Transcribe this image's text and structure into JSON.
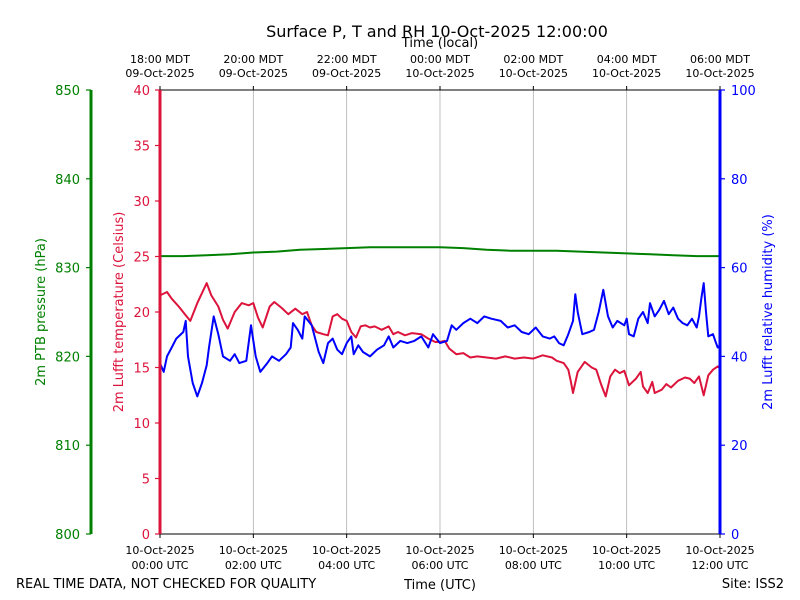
{
  "chart_data": {
    "type": "line",
    "title": "Surface P, T and RH 10-Oct-2025 12:00:00",
    "top_axis_label": "Time (local)",
    "xlabel": "Time (UTC)",
    "footer_left": "REAL TIME DATA, NOT CHECKED FOR QUALITY",
    "footer_right": "Site: ISS2",
    "x_unit": "hours since 10-Oct-2025 00:00 UTC",
    "xlim": [
      0,
      12
    ],
    "grid": "vertical",
    "x_ticks_utc": [
      {
        "x": 0,
        "line1": "10-Oct-2025",
        "line2": "00:00 UTC"
      },
      {
        "x": 2,
        "line1": "10-Oct-2025",
        "line2": "02:00 UTC"
      },
      {
        "x": 4,
        "line1": "10-Oct-2025",
        "line2": "04:00 UTC"
      },
      {
        "x": 6,
        "line1": "10-Oct-2025",
        "line2": "06:00 UTC"
      },
      {
        "x": 8,
        "line1": "10-Oct-2025",
        "line2": "08:00 UTC"
      },
      {
        "x": 10,
        "line1": "10-Oct-2025",
        "line2": "10:00 UTC"
      },
      {
        "x": 12,
        "line1": "10-Oct-2025",
        "line2": "12:00 UTC"
      }
    ],
    "x_ticks_local": [
      {
        "x": 0,
        "line1": "18:00 MDT",
        "line2": "09-Oct-2025"
      },
      {
        "x": 2,
        "line1": "20:00 MDT",
        "line2": "09-Oct-2025"
      },
      {
        "x": 4,
        "line1": "22:00 MDT",
        "line2": "09-Oct-2025"
      },
      {
        "x": 6,
        "line1": "00:00 MDT",
        "line2": "10-Oct-2025"
      },
      {
        "x": 8,
        "line1": "02:00 MDT",
        "line2": "10-Oct-2025"
      },
      {
        "x": 10,
        "line1": "04:00 MDT",
        "line2": "10-Oct-2025"
      },
      {
        "x": 12,
        "line1": "06:00 MDT",
        "line2": "10-Oct-2025"
      }
    ],
    "axes": {
      "pressure": {
        "label": "2m PTB pressure (hPa)",
        "ylim": [
          800,
          850
        ],
        "ticks": [
          800,
          810,
          820,
          830,
          840,
          850
        ],
        "color": "#008000"
      },
      "temperature": {
        "label": "2m Lufft temperature (Celsius)",
        "ylim": [
          0,
          40
        ],
        "ticks": [
          0,
          5,
          10,
          15,
          20,
          25,
          30,
          35,
          40
        ],
        "color": "#dc143c"
      },
      "humidity": {
        "label": "2m Lufft relative humidity (%)",
        "ylim": [
          0,
          100
        ],
        "ticks": [
          0,
          20,
          40,
          60,
          80,
          100
        ],
        "color": "#0000ff"
      }
    },
    "series": [
      {
        "axis": "pressure",
        "color": "#008000",
        "points": [
          [
            0,
            831.3
          ],
          [
            0.5,
            831.3
          ],
          [
            1,
            831.4
          ],
          [
            1.5,
            831.5
          ],
          [
            2,
            831.7
          ],
          [
            2.5,
            831.8
          ],
          [
            3,
            832.0
          ],
          [
            3.5,
            832.1
          ],
          [
            4,
            832.2
          ],
          [
            4.5,
            832.3
          ],
          [
            5,
            832.3
          ],
          [
            5.5,
            832.3
          ],
          [
            6,
            832.3
          ],
          [
            6.5,
            832.2
          ],
          [
            7,
            832.0
          ],
          [
            7.5,
            831.9
          ],
          [
            8,
            831.9
          ],
          [
            8.5,
            831.9
          ],
          [
            9,
            831.8
          ],
          [
            9.5,
            831.7
          ],
          [
            10,
            831.6
          ],
          [
            10.5,
            831.5
          ],
          [
            11,
            831.4
          ],
          [
            11.5,
            831.3
          ],
          [
            12,
            831.3
          ]
        ]
      },
      {
        "axis": "temperature",
        "color": "#dc143c",
        "points": [
          [
            0,
            21.5
          ],
          [
            0.15,
            21.8
          ],
          [
            0.25,
            21.2
          ],
          [
            0.4,
            20.5
          ],
          [
            0.55,
            19.7
          ],
          [
            0.65,
            19.2
          ],
          [
            0.8,
            20.8
          ],
          [
            0.9,
            21.7
          ],
          [
            1.0,
            22.6
          ],
          [
            1.1,
            21.5
          ],
          [
            1.25,
            20.5
          ],
          [
            1.35,
            19.3
          ],
          [
            1.45,
            18.5
          ],
          [
            1.6,
            20.0
          ],
          [
            1.75,
            20.8
          ],
          [
            1.9,
            20.6
          ],
          [
            2.0,
            20.8
          ],
          [
            2.1,
            19.5
          ],
          [
            2.2,
            18.6
          ],
          [
            2.35,
            20.5
          ],
          [
            2.45,
            20.9
          ],
          [
            2.6,
            20.4
          ],
          [
            2.75,
            19.8
          ],
          [
            2.9,
            20.3
          ],
          [
            3.05,
            19.8
          ],
          [
            3.15,
            20.0
          ],
          [
            3.25,
            18.8
          ],
          [
            3.35,
            18.2
          ],
          [
            3.5,
            18.0
          ],
          [
            3.6,
            17.9
          ],
          [
            3.7,
            19.6
          ],
          [
            3.8,
            19.8
          ],
          [
            3.9,
            19.4
          ],
          [
            4.0,
            19.2
          ],
          [
            4.1,
            18.2
          ],
          [
            4.2,
            17.7
          ],
          [
            4.3,
            18.7
          ],
          [
            4.4,
            18.8
          ],
          [
            4.5,
            18.6
          ],
          [
            4.6,
            18.7
          ],
          [
            4.75,
            18.4
          ],
          [
            4.9,
            18.7
          ],
          [
            5.0,
            18.0
          ],
          [
            5.1,
            18.2
          ],
          [
            5.25,
            17.9
          ],
          [
            5.4,
            18.1
          ],
          [
            5.6,
            18.0
          ],
          [
            5.75,
            17.6
          ],
          [
            5.9,
            17.3
          ],
          [
            6.0,
            17.3
          ],
          [
            6.1,
            17.4
          ],
          [
            6.2,
            16.7
          ],
          [
            6.35,
            16.2
          ],
          [
            6.5,
            16.3
          ],
          [
            6.65,
            15.9
          ],
          [
            6.8,
            16.0
          ],
          [
            7.0,
            15.9
          ],
          [
            7.2,
            15.8
          ],
          [
            7.4,
            16.0
          ],
          [
            7.6,
            15.8
          ],
          [
            7.8,
            15.9
          ],
          [
            8.0,
            15.8
          ],
          [
            8.2,
            16.1
          ],
          [
            8.4,
            15.9
          ],
          [
            8.5,
            15.6
          ],
          [
            8.65,
            15.4
          ],
          [
            8.75,
            14.8
          ],
          [
            8.8,
            13.8
          ],
          [
            8.85,
            12.7
          ],
          [
            8.95,
            14.6
          ],
          [
            9.1,
            15.5
          ],
          [
            9.25,
            15.0
          ],
          [
            9.35,
            14.8
          ],
          [
            9.45,
            13.5
          ],
          [
            9.55,
            12.4
          ],
          [
            9.65,
            14.2
          ],
          [
            9.75,
            14.8
          ],
          [
            9.85,
            14.5
          ],
          [
            9.95,
            14.7
          ],
          [
            10.05,
            13.4
          ],
          [
            10.2,
            14.0
          ],
          [
            10.3,
            14.6
          ],
          [
            10.35,
            13.3
          ],
          [
            10.45,
            12.7
          ],
          [
            10.55,
            13.7
          ],
          [
            10.6,
            12.7
          ],
          [
            10.75,
            13.0
          ],
          [
            10.85,
            13.5
          ],
          [
            10.95,
            13.2
          ],
          [
            11.1,
            13.8
          ],
          [
            11.25,
            14.1
          ],
          [
            11.35,
            14.0
          ],
          [
            11.45,
            13.6
          ],
          [
            11.55,
            14.2
          ],
          [
            11.65,
            12.5
          ],
          [
            11.75,
            14.3
          ],
          [
            11.85,
            14.8
          ],
          [
            11.95,
            15.1
          ],
          [
            12.0,
            15.0
          ]
        ]
      },
      {
        "axis": "humidity",
        "color": "#0000ff",
        "points": [
          [
            0,
            38.5
          ],
          [
            0.08,
            36.5
          ],
          [
            0.15,
            40.0
          ],
          [
            0.25,
            42.0
          ],
          [
            0.35,
            44.0
          ],
          [
            0.5,
            45.5
          ],
          [
            0.55,
            48.0
          ],
          [
            0.6,
            40.0
          ],
          [
            0.7,
            34.0
          ],
          [
            0.8,
            31.0
          ],
          [
            0.9,
            34.0
          ],
          [
            1.0,
            38.0
          ],
          [
            1.05,
            42.0
          ],
          [
            1.15,
            49.0
          ],
          [
            1.25,
            45.0
          ],
          [
            1.35,
            40.0
          ],
          [
            1.5,
            39.0
          ],
          [
            1.6,
            40.5
          ],
          [
            1.7,
            38.5
          ],
          [
            1.85,
            39.0
          ],
          [
            1.95,
            47.0
          ],
          [
            2.05,
            40.0
          ],
          [
            2.15,
            36.5
          ],
          [
            2.3,
            38.5
          ],
          [
            2.4,
            40.0
          ],
          [
            2.55,
            39.0
          ],
          [
            2.7,
            40.5
          ],
          [
            2.8,
            42.0
          ],
          [
            2.85,
            47.5
          ],
          [
            2.95,
            46.0
          ],
          [
            3.05,
            44.0
          ],
          [
            3.1,
            49.0
          ],
          [
            3.25,
            47.0
          ],
          [
            3.4,
            41.0
          ],
          [
            3.5,
            38.5
          ],
          [
            3.6,
            43.0
          ],
          [
            3.7,
            44.0
          ],
          [
            3.8,
            41.5
          ],
          [
            3.9,
            40.5
          ],
          [
            4.0,
            43.0
          ],
          [
            4.1,
            44.5
          ],
          [
            4.15,
            40.5
          ],
          [
            4.25,
            42.5
          ],
          [
            4.35,
            41.0
          ],
          [
            4.5,
            40.0
          ],
          [
            4.65,
            41.5
          ],
          [
            4.8,
            42.5
          ],
          [
            4.9,
            44.5
          ],
          [
            5.0,
            42.0
          ],
          [
            5.15,
            43.5
          ],
          [
            5.3,
            43.0
          ],
          [
            5.45,
            43.5
          ],
          [
            5.6,
            44.5
          ],
          [
            5.75,
            42.0
          ],
          [
            5.85,
            45.0
          ],
          [
            6.0,
            43.0
          ],
          [
            6.15,
            43.5
          ],
          [
            6.25,
            47.0
          ],
          [
            6.35,
            46.0
          ],
          [
            6.5,
            47.5
          ],
          [
            6.65,
            48.5
          ],
          [
            6.8,
            47.5
          ],
          [
            6.95,
            49.0
          ],
          [
            7.1,
            48.5
          ],
          [
            7.3,
            48.0
          ],
          [
            7.45,
            46.5
          ],
          [
            7.6,
            47.0
          ],
          [
            7.75,
            45.5
          ],
          [
            7.9,
            45.0
          ],
          [
            8.05,
            46.5
          ],
          [
            8.2,
            44.5
          ],
          [
            8.35,
            44.0
          ],
          [
            8.45,
            44.5
          ],
          [
            8.55,
            43.0
          ],
          [
            8.65,
            42.5
          ],
          [
            8.75,
            45.0
          ],
          [
            8.85,
            48.0
          ],
          [
            8.9,
            54.0
          ],
          [
            8.95,
            50.0
          ],
          [
            9.05,
            45.0
          ],
          [
            9.2,
            45.5
          ],
          [
            9.3,
            46.0
          ],
          [
            9.4,
            50.0
          ],
          [
            9.5,
            55.0
          ],
          [
            9.6,
            49.0
          ],
          [
            9.7,
            46.5
          ],
          [
            9.8,
            48.0
          ],
          [
            9.95,
            47.0
          ],
          [
            10.0,
            48.5
          ],
          [
            10.05,
            45.0
          ],
          [
            10.15,
            44.5
          ],
          [
            10.25,
            48.5
          ],
          [
            10.35,
            50.0
          ],
          [
            10.45,
            47.5
          ],
          [
            10.5,
            52.0
          ],
          [
            10.6,
            49.0
          ],
          [
            10.7,
            50.5
          ],
          [
            10.8,
            52.5
          ],
          [
            10.9,
            49.5
          ],
          [
            11.0,
            51.0
          ],
          [
            11.1,
            48.5
          ],
          [
            11.2,
            47.5
          ],
          [
            11.3,
            47.0
          ],
          [
            11.4,
            48.5
          ],
          [
            11.5,
            46.5
          ],
          [
            11.55,
            49.0
          ],
          [
            11.6,
            53.0
          ],
          [
            11.65,
            56.5
          ],
          [
            11.7,
            50.0
          ],
          [
            11.75,
            44.5
          ],
          [
            11.85,
            45.0
          ],
          [
            11.9,
            43.5
          ],
          [
            11.95,
            42.0
          ],
          [
            12.0,
            42.5
          ]
        ]
      }
    ]
  }
}
